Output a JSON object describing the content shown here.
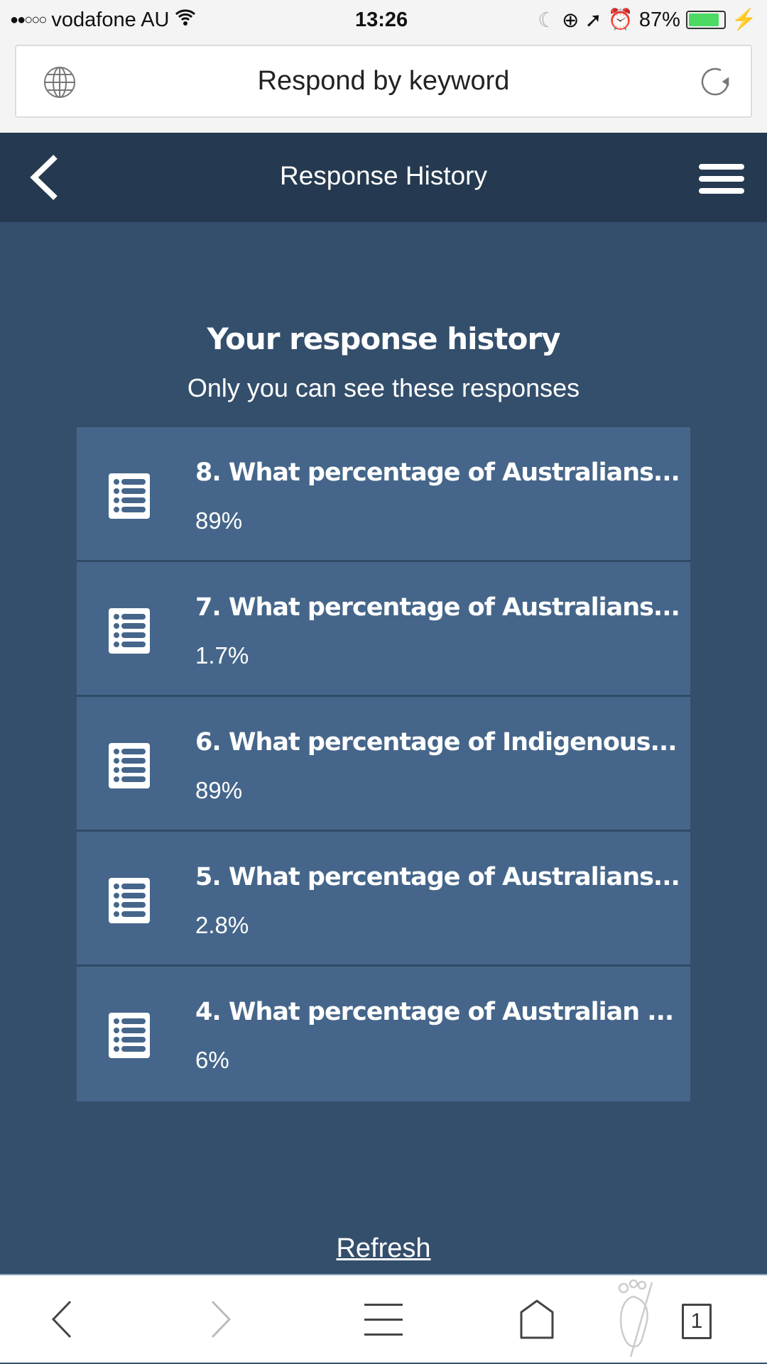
{
  "status_bar": {
    "carrier": "vodafone AU",
    "time": "13:26",
    "battery": "87%",
    "battery_level": 87,
    "signal_bars": 2
  },
  "browser": {
    "url_title": "Respond by keyword",
    "tab_count": "1"
  },
  "nav": {
    "title": "Response History"
  },
  "main": {
    "heading": "Your response history",
    "subheading": "Only you can see these responses",
    "items": [
      {
        "question": "8. What percentage of Australians...",
        "answer": "89%"
      },
      {
        "question": "7. What percentage of Australians...",
        "answer": "1.7%"
      },
      {
        "question": "6. What percentage of Indigenous...",
        "answer": "89%"
      },
      {
        "question": "5. What percentage of Australians...",
        "answer": "2.8%"
      },
      {
        "question": "4. What percentage of Australian ...",
        "answer": "6%"
      }
    ],
    "refresh_label": "Refresh"
  },
  "colors": {
    "nav": "#253a50",
    "background": "#344f6c",
    "item": "#45668a",
    "battery": "#4cd964"
  }
}
